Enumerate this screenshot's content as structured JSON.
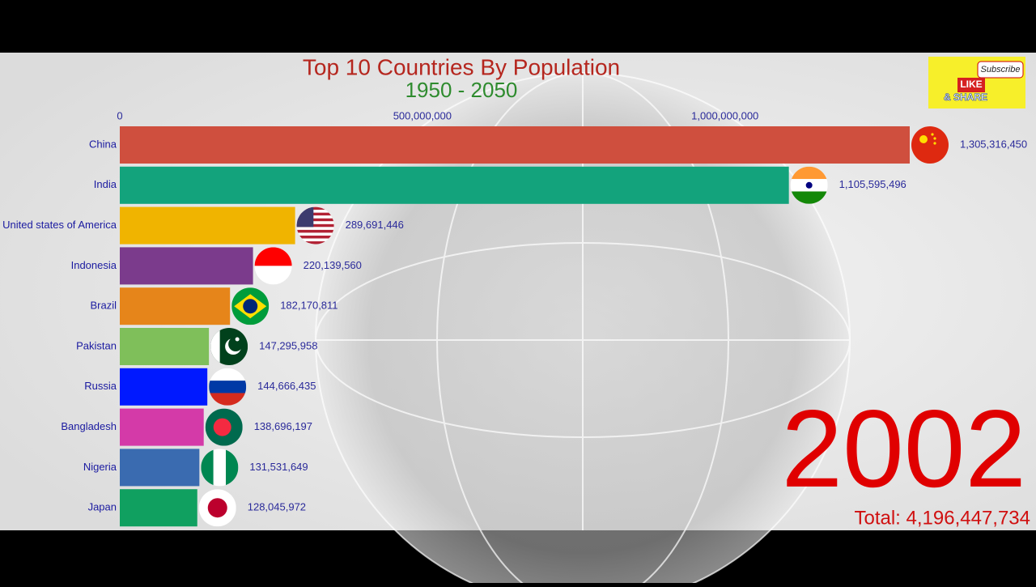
{
  "chart_data": {
    "type": "bar",
    "orientation": "horizontal",
    "title": "Top 10 Countries By Population",
    "subtitle": "1950 - 2050",
    "categories": [
      "China",
      "India",
      "United states of America",
      "Indonesia",
      "Brazil",
      "Pakistan",
      "Russia",
      "Bangladesh",
      "Nigeria",
      "Japan"
    ],
    "values": [
      1305316450,
      1105595496,
      289691446,
      220139560,
      182170811,
      147295958,
      144666435,
      138696197,
      131531649,
      128045972
    ],
    "value_labels": [
      "1,305,316,450",
      "1,105,595,496",
      "289,691,446",
      "220,139,560",
      "182,170,811",
      "147,295,958",
      "144,666,435",
      "138,696,197",
      "131,531,649",
      "128,045,972"
    ],
    "colors": [
      "#cf4f3e",
      "#13a37c",
      "#f0b400",
      "#7b3b8c",
      "#e6851a",
      "#7fbf5a",
      "#0019ff",
      "#d43aa8",
      "#3a6bb0",
      "#10a060"
    ],
    "xlim": [
      0,
      1305316450
    ],
    "xticks": [
      0,
      {
        "value": 500000000,
        "label": "500,000,000"
      },
      {
        "value": 1000000000,
        "label": "1,000,000,000"
      }
    ],
    "grid": false,
    "annotations": {
      "year": "2002",
      "total": "Total: 4,196,447,734"
    }
  },
  "badge": {
    "subscribe": "Subscribe",
    "like": "LIKE",
    "share": "& SHARE"
  }
}
